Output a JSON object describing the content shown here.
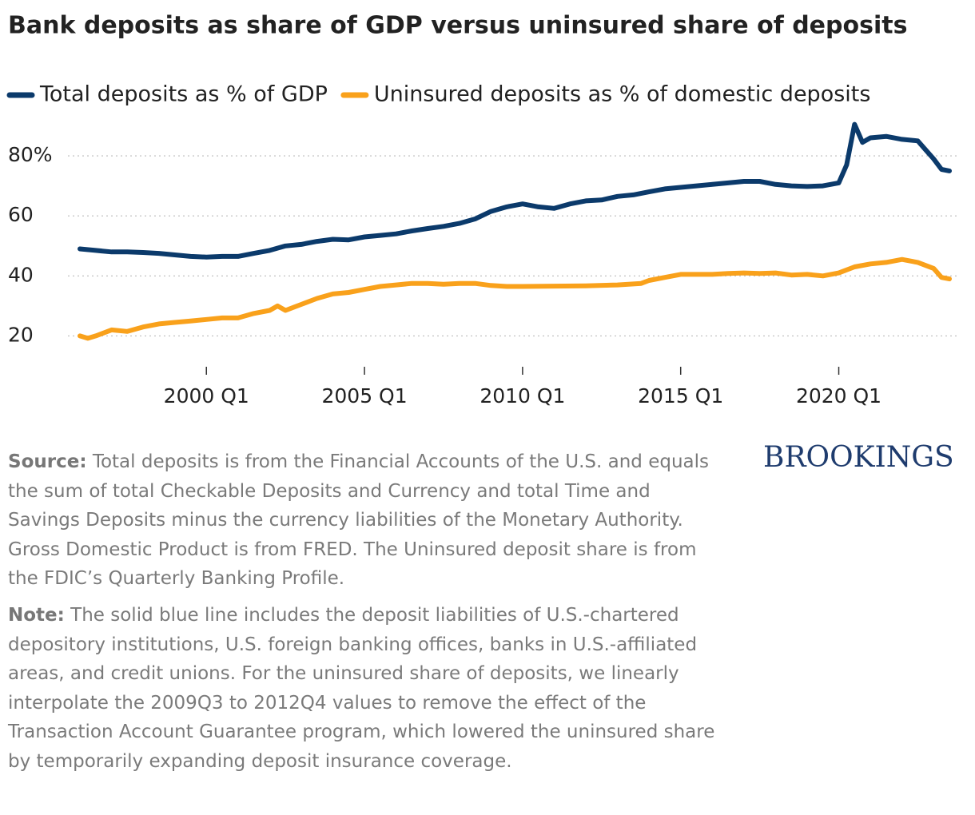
{
  "chart_data": {
    "type": "line",
    "title": "Bank deposits as share of GDP versus uninsured share of deposits",
    "xlim": [
      1996.0,
      2023.5
    ],
    "xticks": [
      {
        "value": 2000,
        "label": "2000 Q1"
      },
      {
        "value": 2005,
        "label": "2005 Q1"
      },
      {
        "value": 2010,
        "label": "2010 Q1"
      },
      {
        "value": 2015,
        "label": "2015 Q1"
      },
      {
        "value": 2020,
        "label": "2020 Q1"
      }
    ],
    "ylim": [
      10,
      92
    ],
    "yticks": [
      {
        "value": 20,
        "label": "20"
      },
      {
        "value": 40,
        "label": "40"
      },
      {
        "value": 60,
        "label": "60"
      },
      {
        "value": 80,
        "label": "80%"
      }
    ],
    "grid": true,
    "legend": "top",
    "series": [
      {
        "name": "Total deposits as % of GDP",
        "color": "#0b3a6b",
        "x": [
          1996.0,
          1996.5,
          1997.0,
          1997.5,
          1998.0,
          1998.5,
          1999.0,
          1999.5,
          2000.0,
          2000.5,
          2001.0,
          2001.5,
          2002.0,
          2002.5,
          2003.0,
          2003.5,
          2004.0,
          2004.5,
          2005.0,
          2005.5,
          2006.0,
          2006.5,
          2007.0,
          2007.5,
          2008.0,
          2008.5,
          2009.0,
          2009.5,
          2010.0,
          2010.5,
          2011.0,
          2011.5,
          2012.0,
          2012.5,
          2013.0,
          2013.5,
          2014.0,
          2014.5,
          2015.0,
          2015.5,
          2016.0,
          2016.5,
          2017.0,
          2017.5,
          2018.0,
          2018.5,
          2019.0,
          2019.5,
          2020.0,
          2020.25,
          2020.5,
          2020.75,
          2021.0,
          2021.5,
          2022.0,
          2022.5,
          2022.75,
          2023.0,
          2023.25,
          2023.5
        ],
        "values": [
          49,
          48.5,
          48,
          48,
          47.8,
          47.5,
          47,
          46.5,
          46.3,
          46.5,
          46.5,
          47.5,
          48.5,
          50,
          50.5,
          51.5,
          52.2,
          52,
          53,
          53.5,
          54,
          55,
          55.8,
          56.5,
          57.5,
          59,
          61.5,
          63,
          64,
          63,
          62.5,
          64,
          65,
          65.3,
          66.5,
          67,
          68,
          69,
          69.5,
          70,
          70.5,
          71,
          71.5,
          71.5,
          70.5,
          70,
          69.8,
          70,
          71,
          77,
          90.5,
          84.5,
          86,
          86.5,
          85.5,
          85,
          82,
          79,
          75.5,
          75
        ]
      },
      {
        "name": "Uninsured deposits as % of domestic deposits",
        "color": "#f9a11b",
        "x": [
          1996.0,
          1996.25,
          1996.5,
          1997.0,
          1997.5,
          1998.0,
          1998.5,
          1999.0,
          1999.5,
          2000.0,
          2000.5,
          2001.0,
          2001.5,
          2002.0,
          2002.25,
          2002.5,
          2003.0,
          2003.5,
          2004.0,
          2004.5,
          2005.0,
          2005.5,
          2006.0,
          2006.5,
          2007.0,
          2007.5,
          2008.0,
          2008.5,
          2009.0,
          2009.5,
          2010.0,
          2011.0,
          2012.0,
          2013.0,
          2013.75,
          2014.0,
          2014.5,
          2015.0,
          2015.5,
          2016.0,
          2016.5,
          2017.0,
          2017.5,
          2018.0,
          2018.5,
          2019.0,
          2019.5,
          2020.0,
          2020.5,
          2021.0,
          2021.5,
          2022.0,
          2022.5,
          2023.0,
          2023.25,
          2023.5
        ],
        "values": [
          20,
          19.2,
          20,
          22,
          21.5,
          23,
          24,
          24.5,
          25,
          25.5,
          26,
          26,
          27.5,
          28.5,
          30,
          28.5,
          30.5,
          32.5,
          34,
          34.5,
          35.5,
          36.5,
          37,
          37.5,
          37.5,
          37.2,
          37.5,
          37.5,
          36.8,
          36.5,
          36.5,
          36.6,
          36.7,
          37,
          37.5,
          38.5,
          39.5,
          40.5,
          40.5,
          40.5,
          40.8,
          41,
          40.8,
          41,
          40.3,
          40.5,
          40,
          41,
          43,
          44,
          44.5,
          45.5,
          44.5,
          42.5,
          39.5,
          39
        ]
      }
    ],
    "source_label": "Source:",
    "source": "Total deposits is from the Financial Accounts of the U.S. and equals the sum of total Checkable Deposits and Currency and total Time and Savings Deposits minus the currency liabilities of the Monetary Authority. Gross Domestic Product is from FRED. The Uninsured deposit share is from the FDIC’s Quarterly Banking Profile.",
    "note_label": "Note:",
    "note": "The solid blue line includes the deposit liabilities of U.S.-chartered depository institutions, U.S. foreign banking offices, banks in U.S.-affiliated areas, and credit unions. For the uninsured share of deposits, we linearly interpolate the 2009Q3 to 2012Q4 values to remove the effect of the Transaction Account Guarantee program, which lowered the uninsured share by temporarily expanding deposit insurance coverage.",
    "logo": "BROOKINGS"
  }
}
